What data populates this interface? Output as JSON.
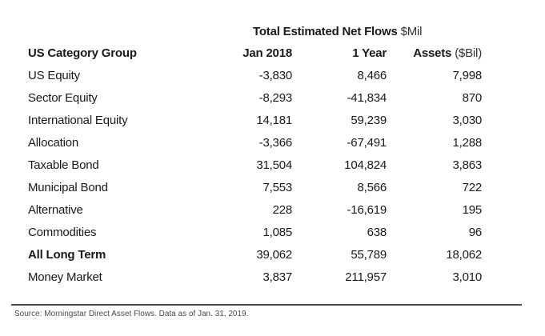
{
  "header": {
    "title_bold": "Total Estimated Net Flows",
    "title_unit": "$Mil"
  },
  "table": {
    "col_category": "US Category Group",
    "col_jan2018": "Jan 2018",
    "col_1year": "1 Year",
    "col_assets": "Assets",
    "col_assets_unit": "($Bil)",
    "rows": [
      {
        "category": "US Equity",
        "jan2018": "-3,830",
        "year1": "8,466",
        "assets": "7,998"
      },
      {
        "category": "Sector Equity",
        "jan2018": "-8,293",
        "year1": "-41,834",
        "assets": "870"
      },
      {
        "category": "International Equity",
        "jan2018": "14,181",
        "year1": "59,239",
        "assets": "3,030"
      },
      {
        "category": "Allocation",
        "jan2018": "-3,366",
        "year1": "-67,491",
        "assets": "1,288"
      },
      {
        "category": "Taxable Bond",
        "jan2018": "31,504",
        "year1": "104,824",
        "assets": "3,863"
      },
      {
        "category": "Municipal Bond",
        "jan2018": "7,553",
        "year1": "8,566",
        "assets": "722"
      },
      {
        "category": "Alternative",
        "jan2018": "228",
        "year1": "-16,619",
        "assets": "195"
      },
      {
        "category": "Commodities",
        "jan2018": "1,085",
        "year1": "638",
        "assets": "96"
      },
      {
        "category": "All Long Term",
        "jan2018": "39,062",
        "year1": "55,789",
        "assets": "18,062"
      },
      {
        "category": "Money Market",
        "jan2018": "3,837",
        "year1": "211,957",
        "assets": "3,010"
      }
    ]
  },
  "footer": {
    "source_text": "Source: Morningstar Direct Asset Flows. Data as of Jan. 31, 2019."
  },
  "colors": {
    "text": "#1a1a1a",
    "muted_unit": "#333333",
    "rule": "#4d4d4d",
    "source_text": "#4a4a4a",
    "background": "#ffffff"
  },
  "chart_data": {
    "type": "table",
    "title": "Total Estimated Net Flows $Mil",
    "columns": [
      "US Category Group",
      "Jan 2018",
      "1 Year",
      "Assets ($Bil)"
    ],
    "units": {
      "jan_2018": "$Mil",
      "one_year": "$Mil",
      "assets": "$Bil"
    },
    "rows": [
      [
        "US Equity",
        -3830,
        8466,
        7998
      ],
      [
        "Sector Equity",
        -8293,
        -41834,
        870
      ],
      [
        "International Equity",
        14181,
        59239,
        3030
      ],
      [
        "Allocation",
        -3366,
        -67491,
        1288
      ],
      [
        "Taxable Bond",
        31504,
        104824,
        3863
      ],
      [
        "Municipal Bond",
        7553,
        8566,
        722
      ],
      [
        "Alternative",
        228,
        -16619,
        195
      ],
      [
        "Commodities",
        1085,
        638,
        96
      ],
      [
        "All Long Term",
        39062,
        55789,
        18062
      ],
      [
        "Money Market",
        3837,
        211957,
        3010
      ]
    ],
    "bold_rows": [
      "All Long Term"
    ],
    "source": "Source: Morningstar Direct Asset Flows. Data as of Jan. 31, 2019."
  }
}
